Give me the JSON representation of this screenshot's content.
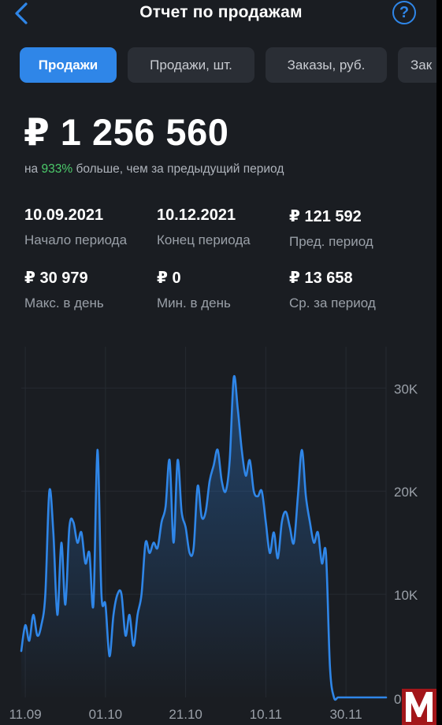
{
  "header": {
    "title": "Отчет по продажам",
    "help": "?"
  },
  "tabs": [
    {
      "label": "Продажи",
      "active": true
    },
    {
      "label": "Продажи, шт.",
      "active": false
    },
    {
      "label": "Заказы, руб.",
      "active": false
    },
    {
      "label": "Зак",
      "active": false
    }
  ],
  "summary": {
    "total": "₽ 1 256 560",
    "sub_prefix": "на ",
    "sub_pct": "933%",
    "sub_suffix": " больше, чем за предыдущий период"
  },
  "stats": [
    {
      "value": "10.09.2021",
      "label": "Начало периода"
    },
    {
      "value": "10.12.2021",
      "label": "Конец периода"
    },
    {
      "value": "₽ 121 592",
      "label": "Пред. период"
    },
    {
      "value": "₽ 30 979",
      "label": "Макс. в день"
    },
    {
      "value": "₽ 0",
      "label": "Мин. в день"
    },
    {
      "value": "₽ 13 658",
      "label": "Ср. за период"
    }
  ],
  "colors": {
    "accent": "#2f86e8",
    "positive": "#4ccb6b",
    "background": "#1a1d22"
  },
  "icons": {
    "back": "chevron-left-icon",
    "help": "question-circle-icon"
  },
  "chart_data": {
    "type": "area",
    "x": [
      "10.09",
      "11.09",
      "12.09",
      "13.09",
      "14.09",
      "15.09",
      "16.09",
      "17.09",
      "18.09",
      "19.09",
      "20.09",
      "21.09",
      "22.09",
      "23.09",
      "24.09",
      "25.09",
      "26.09",
      "27.09",
      "28.09",
      "29.09",
      "30.09",
      "01.10",
      "02.10",
      "03.10",
      "04.10",
      "05.10",
      "06.10",
      "07.10",
      "08.10",
      "09.10",
      "10.10",
      "11.10",
      "12.10",
      "13.10",
      "14.10",
      "15.10",
      "16.10",
      "17.10",
      "18.10",
      "19.10",
      "20.10",
      "21.10",
      "22.10",
      "23.10",
      "24.10",
      "25.10",
      "26.10",
      "27.10",
      "28.10",
      "29.10",
      "30.10",
      "31.10",
      "01.11",
      "02.11",
      "03.11",
      "04.11",
      "05.11",
      "06.11",
      "07.11",
      "08.11",
      "09.11",
      "10.11",
      "11.11",
      "12.11",
      "13.11",
      "14.11",
      "15.11",
      "16.11",
      "17.11",
      "18.11",
      "19.11",
      "20.11",
      "21.11",
      "22.11",
      "23.11",
      "24.11",
      "25.11",
      "26.11",
      "27.11",
      "28.11",
      "29.11",
      "30.11",
      "01.12",
      "02.12",
      "03.12",
      "04.12",
      "05.12",
      "06.12",
      "07.12",
      "08.12",
      "09.12",
      "10.12"
    ],
    "series": [
      {
        "values": [
          4500,
          7000,
          5500,
          8000,
          6000,
          7000,
          10000,
          20000,
          16000,
          8000,
          15000,
          9000,
          16500,
          17000,
          15000,
          16000,
          13000,
          14000,
          9000,
          24000,
          10000,
          9000,
          4000,
          8000,
          10000,
          10000,
          6000,
          8000,
          5000,
          8000,
          10000,
          15000,
          14000,
          15000,
          14500,
          17000,
          18500,
          23000,
          15000,
          23000,
          18000,
          16500,
          14000,
          14500,
          20500,
          17500,
          18000,
          21000,
          22500,
          24000,
          21000,
          20000,
          23000,
          31000,
          28000,
          24000,
          21500,
          23000,
          20000,
          19500,
          20000,
          17000,
          14000,
          16000,
          13500,
          17000,
          18000,
          16500,
          15000,
          19500,
          24000,
          19500,
          17000,
          15000,
          16000,
          13000,
          14000,
          3000,
          0,
          0,
          0,
          0,
          0,
          0,
          0,
          0,
          0,
          0,
          0,
          0,
          0,
          0
        ]
      }
    ],
    "yticks": [
      "10K",
      "20K",
      "30K"
    ],
    "xticks": [
      "11.09",
      "01.10",
      "21.10",
      "10.11",
      "30.11"
    ],
    "ylim": [
      0,
      34000
    ],
    "grid": true
  }
}
